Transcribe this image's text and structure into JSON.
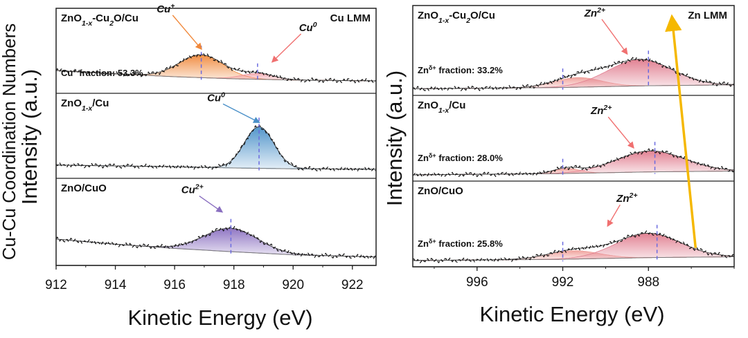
{
  "figure": {
    "left_ylabel_small": "Cu-Cu Coordination Numbers",
    "left_ylabel_big": "Intensity (a.u.)",
    "right_ylabel": "Intensity (a.u.)"
  },
  "chart_data": [
    {
      "type": "line",
      "name": "Cu LMM Auger spectra",
      "xlabel": "Kinetic Energy (eV)",
      "ylabel": "Intensity (a.u.)",
      "xlim": [
        912,
        922.8
      ],
      "xticks": [
        "912",
        "914",
        "916",
        "918",
        "920",
        "922"
      ],
      "panels": [
        {
          "sample_label": "ZnO1-x-Cu2O/Cu",
          "title_parts": [
            "ZnO",
            "1-x",
            "-Cu",
            "2",
            "O/Cu"
          ],
          "region_label": "Cu LMM",
          "fraction_text": [
            "Cu",
            "+",
            " fraction: 53.3%"
          ],
          "fraction_percent": 53.3,
          "baseline": 0.3,
          "background": [
            [
              912,
              0.55
            ],
            [
              914,
              0.47
            ],
            [
              916,
              0.4
            ],
            [
              918,
              0.35
            ],
            [
              920,
              0.32
            ],
            [
              922.8,
              0.3
            ]
          ],
          "components": [
            {
              "name": "Cu+",
              "label_parts": [
                "Cu",
                "+"
              ],
              "center": 916.9,
              "sigma": 0.75,
              "amplitude": 0.55,
              "color": "#f0883a"
            },
            {
              "name": "Cu0",
              "label_parts": [
                "Cu",
                "0"
              ],
              "center": 918.8,
              "sigma": 0.55,
              "amplitude": 0.14,
              "color": "#f0929a"
            }
          ],
          "markers": [
            916.9,
            918.8
          ],
          "labels": [
            {
              "component": "Cu+",
              "tx": 915.7,
              "ty": 1.95,
              "arrow_to": [
                916.9,
                1.07
              ],
              "color": "#f0883a"
            },
            {
              "component": "Cu0",
              "tx": 920.5,
              "ty": 1.5,
              "arrow_to": [
                919.3,
                0.76
              ],
              "color": "#f07070"
            }
          ]
        },
        {
          "sample_label": "ZnO1-x/Cu",
          "title_parts": [
            "ZnO",
            "1-x",
            "/Cu"
          ],
          "region_label": "",
          "fraction_text": [],
          "baseline": 0.22,
          "background": [
            [
              912,
              0.32
            ],
            [
              916,
              0.28
            ],
            [
              918,
              0.25
            ],
            [
              920,
              0.23
            ],
            [
              922.8,
              0.22
            ]
          ],
          "components": [
            {
              "name": "Cu0",
              "label_parts": [
                "Cu",
                "0"
              ],
              "center": 918.85,
              "sigma": 0.5,
              "amplitude": 1.0,
              "color": "#4a90c8"
            }
          ],
          "markers": [
            918.85
          ],
          "labels": [
            {
              "component": "Cu0",
              "tx": 917.4,
              "ty": 1.86,
              "arrow_to": [
                918.85,
                1.35
              ],
              "color": "#4a90c8"
            }
          ]
        },
        {
          "sample_label": "ZnO/CuO",
          "title_parts": [
            "ZnO/CuO"
          ],
          "region_label": "",
          "fraction_text": [],
          "baseline": 0.2,
          "background": [
            [
              912,
              0.62
            ],
            [
              914,
              0.5
            ],
            [
              916,
              0.4
            ],
            [
              918,
              0.32
            ],
            [
              920,
              0.25
            ],
            [
              922.8,
              0.2
            ]
          ],
          "components": [
            {
              "name": "Cu2+",
              "label_parts": [
                "Cu",
                "2+"
              ],
              "center": 917.9,
              "sigma": 0.9,
              "amplitude": 0.55,
              "color": "#8a6fc0"
            }
          ],
          "markers": [
            917.9
          ],
          "labels": [
            {
              "component": "Cu2+",
              "tx": 916.6,
              "ty": 1.7,
              "arrow_to": [
                917.6,
                1.26
              ],
              "color": "#8a6fc0"
            }
          ]
        }
      ]
    },
    {
      "type": "line",
      "name": "Zn LMM Auger spectra",
      "xlabel": "Kinetic Energy (eV)",
      "ylabel": "Intensity (a.u.)",
      "xlim": [
        999,
        984
      ],
      "xticks": [
        "996",
        "992",
        "988"
      ],
      "trend_arrow": {
        "from": [
          985.8,
          0.55
        ],
        "to": [
          986.9,
          7.25
        ],
        "color": "#f5b800"
      },
      "panels": [
        {
          "sample_label": "ZnO1-x-Cu2O/Cu",
          "title_parts": [
            "ZnO",
            "1-x",
            "-Cu",
            "2",
            "O/Cu"
          ],
          "region_label": "Zn LMM",
          "fraction_text": [
            "Zn",
            "δ+",
            " fraction: 33.2%"
          ],
          "fraction_percent": 33.2,
          "baseline": 0.18,
          "background": [
            [
              999,
              0.15
            ],
            [
              992,
              0.18
            ],
            [
              988,
              0.22
            ],
            [
              984,
              0.24
            ]
          ],
          "components": [
            {
              "name": "Znδ+",
              "center": 991.3,
              "sigma": 1.1,
              "amplitude": 0.22,
              "color": "#f0a09a"
            },
            {
              "name": "Zn2+",
              "center": 988.4,
              "sigma": 1.5,
              "amplitude": 0.6,
              "color": "#e07c8e"
            }
          ],
          "markers": [
            992.0,
            988.0
          ],
          "labels": [
            {
              "component": "Zn2+",
              "label_parts": [
                "Zn",
                "2+"
              ],
              "tx": 990.5,
              "ty": 1.8,
              "arrow_to": [
                989.0,
                0.95
              ],
              "color": "#f07070"
            }
          ]
        },
        {
          "sample_label": "ZnO1-x/Cu",
          "title_parts": [
            "ZnO",
            "1-x",
            "/Cu"
          ],
          "region_label": "",
          "fraction_text": [
            "Zn",
            "δ+",
            " fraction: 28.0%"
          ],
          "fraction_percent": 28.0,
          "baseline": 0.18,
          "background": [
            [
              999,
              0.15
            ],
            [
              992,
              0.18
            ],
            [
              988,
              0.22
            ],
            [
              984,
              0.24
            ]
          ],
          "components": [
            {
              "name": "Znδ+",
              "center": 991.8,
              "sigma": 0.6,
              "amplitude": 0.12,
              "color": "#f0a09a"
            },
            {
              "name": "Zn2+",
              "center": 987.9,
              "sigma": 1.6,
              "amplitude": 0.5,
              "color": "#e07c8e"
            }
          ],
          "markers": [
            992.0,
            987.7
          ],
          "labels": [
            {
              "component": "Zn2+",
              "label_parts": [
                "Zn",
                "2+"
              ],
              "tx": 990.2,
              "ty": 1.6,
              "arrow_to": [
                988.7,
                0.8
              ],
              "color": "#f07070"
            }
          ]
        },
        {
          "sample_label": "ZnO/CuO",
          "title_parts": [
            "ZnO/CuO"
          ],
          "region_label": "",
          "fraction_text": [
            "Zn",
            "δ+",
            " fraction: 25.8%"
          ],
          "fraction_percent": 25.8,
          "baseline": 0.15,
          "background": [
            [
              999,
              0.15
            ],
            [
              992,
              0.18
            ],
            [
              988,
              0.22
            ],
            [
              984,
              0.24
            ]
          ],
          "components": [
            {
              "name": "Znδ+",
              "center": 991.5,
              "sigma": 1.2,
              "amplitude": 0.2,
              "color": "#f0a09a"
            },
            {
              "name": "Zn2+",
              "center": 988.0,
              "sigma": 1.5,
              "amplitude": 0.58,
              "color": "#e07c8e"
            }
          ],
          "markers": [
            992.0,
            987.6
          ],
          "labels": [
            {
              "component": "Zn2+",
              "label_parts": [
                "Zn",
                "2+"
              ],
              "tx": 989.0,
              "ty": 1.55,
              "arrow_to": [
                989.9,
                0.98
              ],
              "color": "#f07070"
            }
          ]
        }
      ]
    }
  ]
}
